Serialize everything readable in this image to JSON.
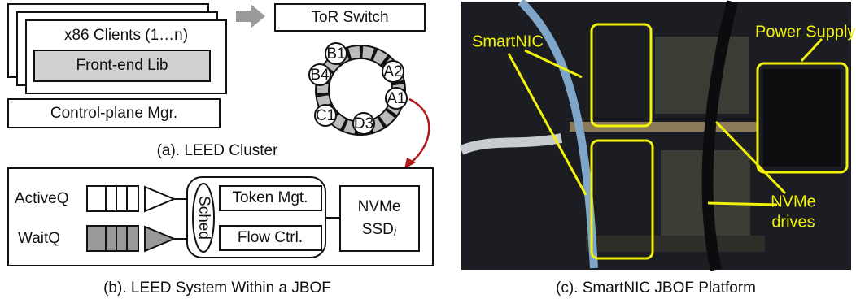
{
  "panel_a": {
    "tor_switch": "ToR Switch",
    "clients": "x86 Clients (1…n)",
    "frontend": "Front-end Lib",
    "control": "Control-plane Mgr.",
    "ring_nodes": [
      "B1",
      "A2",
      "B4",
      "A1",
      "C1",
      "D3"
    ],
    "caption": "(a). LEED Cluster"
  },
  "panel_b": {
    "queues": [
      "ActiveQ",
      "WaitQ"
    ],
    "sched": "Sched",
    "token": "Token Mgt.",
    "flow": "Flow Ctrl.",
    "nvme": "NVMe",
    "ssd": "SSD",
    "ssd_sub": "i",
    "caption": "(b). LEED System Within a JBOF"
  },
  "panel_c": {
    "smartnic": "SmartNIC",
    "power": "Power Supply",
    "drives": [
      "NVMe",
      "drives"
    ],
    "caption": "(c). SmartNIC JBOF Platform"
  }
}
